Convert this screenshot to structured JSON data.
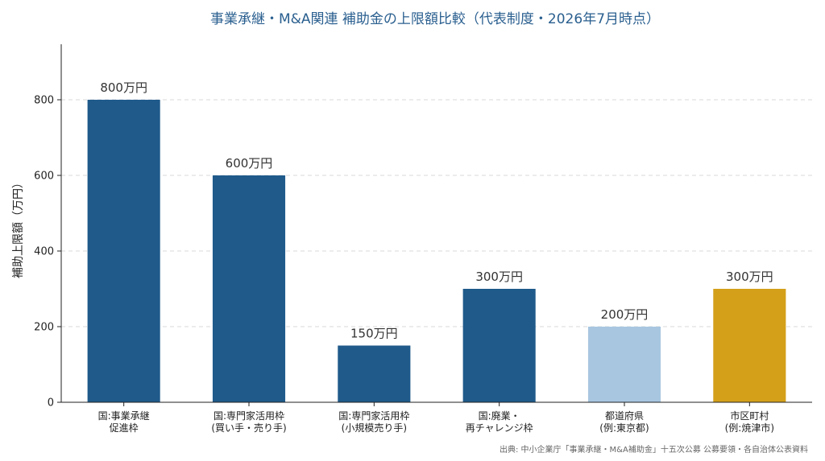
{
  "chart_data": {
    "type": "bar",
    "title": "事業承継・M&A関連 補助金の上限額比較（代表制度・2026年7月時点）",
    "xlabel": "",
    "ylabel": "補助上限額（万円）",
    "ylim": [
      0,
      950
    ],
    "yticks": [
      0,
      200,
      400,
      600,
      800
    ],
    "grid": true,
    "categories": [
      [
        "国:事業承継",
        "促進枠"
      ],
      [
        "国:専門家活用枠",
        "(買い手・売り手)"
      ],
      [
        "国:専門家活用枠",
        "(小規模売り手)"
      ],
      [
        "国:廃業・",
        "再チャレンジ枠"
      ],
      [
        "都道府県",
        "(例:東京都)"
      ],
      [
        "市区町村",
        "(例:焼津市)"
      ]
    ],
    "values": [
      800,
      600,
      150,
      300,
      200,
      300
    ],
    "data_labels": [
      "800万円",
      "600万円",
      "150万円",
      "300万円",
      "200万円",
      "300万円"
    ],
    "colors": [
      "#1f5a8b",
      "#1f5a8b",
      "#1f5a8b",
      "#1f5a8b",
      "#a8c6e0",
      "#d4a01a"
    ],
    "source": "出典: 中小企業庁「事業承継・M&A補助金」十五次公募 公募要領・各自治体公表資料"
  }
}
